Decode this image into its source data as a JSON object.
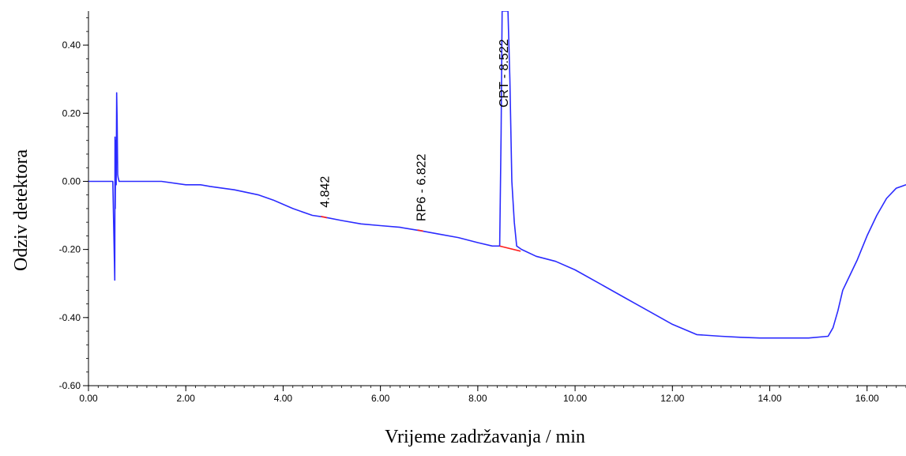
{
  "chart_data": {
    "type": "line",
    "xlabel": "Vrijeme zadržavanja / min",
    "ylabel": "Odziv detektora",
    "xlim": [
      0,
      16.8
    ],
    "ylim": [
      -0.6,
      0.5
    ],
    "x_ticks": [
      "0.00",
      "2.00",
      "4.00",
      "6.00",
      "8.00",
      "10.00",
      "12.00",
      "14.00",
      "16.00"
    ],
    "y_ticks": [
      "0.40",
      "0.20",
      "0.00",
      "-0.20",
      "-0.40",
      "-0.60"
    ],
    "grid": false,
    "series": [
      {
        "color": "#2b2bff",
        "x": [
          0.0,
          0.5,
          0.54,
          0.545,
          0.55,
          0.56,
          0.57,
          0.58,
          0.59,
          0.6,
          0.61,
          0.63,
          0.65,
          0.68,
          0.72,
          0.8,
          1.0,
          1.5,
          2.0,
          2.3,
          2.5,
          3.0,
          3.5,
          3.8,
          4.2,
          4.6,
          4.842,
          5.2,
          5.6,
          6.0,
          6.4,
          6.822,
          7.2,
          7.6,
          8.0,
          8.3,
          8.45,
          8.48,
          8.5,
          8.52,
          8.54,
          8.56,
          8.58,
          8.62,
          8.66,
          8.7,
          8.75,
          8.8,
          8.9,
          9.2,
          9.6,
          10.0,
          10.5,
          11.0,
          11.5,
          12.0,
          12.5,
          13.0,
          13.4,
          13.8,
          14.2,
          14.8,
          15.2,
          15.3,
          15.4,
          15.5,
          15.6,
          15.8,
          16.0,
          16.2,
          16.4,
          16.6,
          16.8
        ],
        "y": [
          0.0,
          0.0,
          -0.29,
          0.13,
          -0.08,
          0.12,
          -0.01,
          0.26,
          0.18,
          0.02,
          0.01,
          0.0,
          0.0,
          0.0,
          0.0,
          0.0,
          0.0,
          0.0,
          -0.01,
          -0.01,
          -0.015,
          -0.025,
          -0.04,
          -0.055,
          -0.08,
          -0.1,
          -0.105,
          -0.115,
          -0.125,
          -0.13,
          -0.135,
          -0.145,
          -0.155,
          -0.165,
          -0.18,
          -0.19,
          -0.19,
          0.14,
          0.5,
          0.5,
          0.5,
          0.5,
          0.5,
          0.5,
          0.3,
          0.0,
          -0.12,
          -0.19,
          -0.2,
          -0.22,
          -0.235,
          -0.26,
          -0.3,
          -0.34,
          -0.38,
          -0.42,
          -0.45,
          -0.455,
          -0.458,
          -0.46,
          -0.46,
          -0.46,
          -0.455,
          -0.43,
          -0.38,
          -0.32,
          -0.29,
          -0.23,
          -0.16,
          -0.1,
          -0.05,
          -0.02,
          -0.01
        ]
      }
    ],
    "annotations": [
      {
        "text": "4.842",
        "x": 4.842
      },
      {
        "text": "RP6 - 6.822",
        "x": 6.822
      },
      {
        "text": "CRT - 8.522",
        "x": 8.522
      }
    ],
    "baseline_color": "#ff2020",
    "baselines": [
      {
        "x": [
          4.78,
          4.9
        ],
        "y": [
          -0.103,
          -0.107
        ]
      },
      {
        "x": [
          6.76,
          6.88
        ],
        "y": [
          -0.143,
          -0.146
        ]
      },
      {
        "x": [
          8.45,
          8.88
        ],
        "y": [
          -0.19,
          -0.205
        ]
      }
    ]
  }
}
